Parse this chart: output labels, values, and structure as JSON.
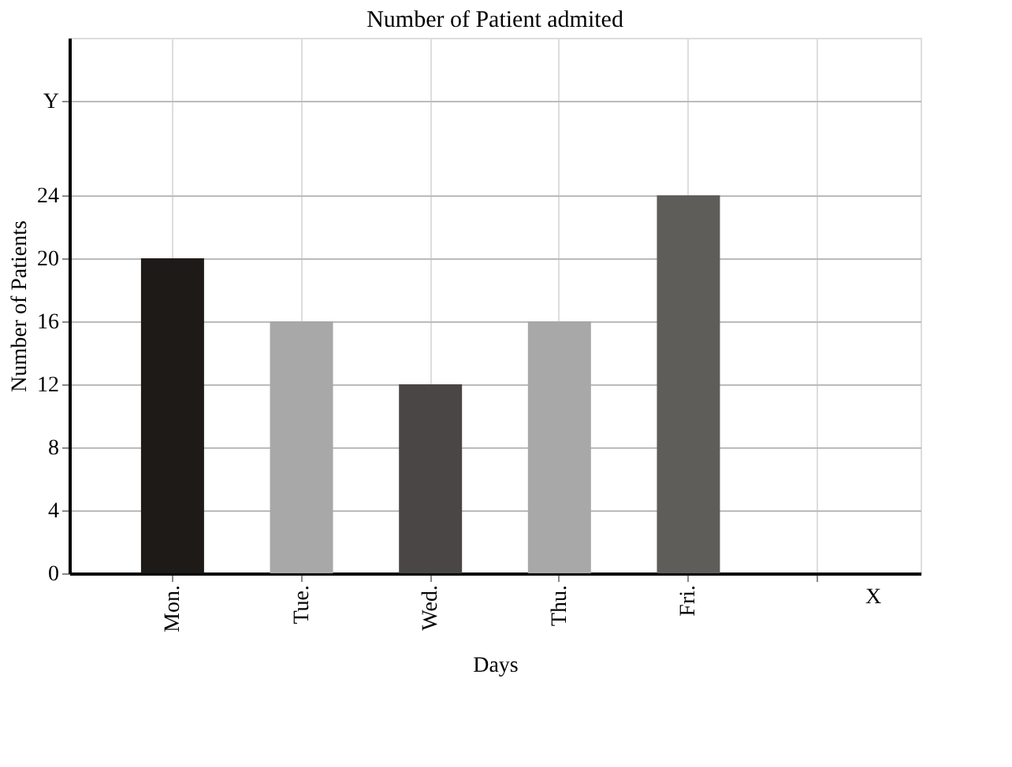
{
  "chart_data": {
    "type": "bar",
    "title": "Number of Patient admited",
    "xlabel": "Days",
    "ylabel": "Number of Patients",
    "categories": [
      "Mon.",
      "Tue.",
      "Wed.",
      "Thu.",
      "Fri."
    ],
    "values": [
      20,
      16,
      12,
      16,
      24
    ],
    "colors": [
      "#1e1a18",
      "#a8a8a8",
      "#4a4646",
      "#a8a8a8",
      "#5f5d5a"
    ],
    "ylim": [
      0,
      34
    ],
    "yticks": [
      0,
      4,
      8,
      12,
      16,
      20,
      24,
      {
        "value": 30,
        "label": "Y"
      }
    ],
    "annotations": [
      "X"
    ],
    "grid": true
  }
}
